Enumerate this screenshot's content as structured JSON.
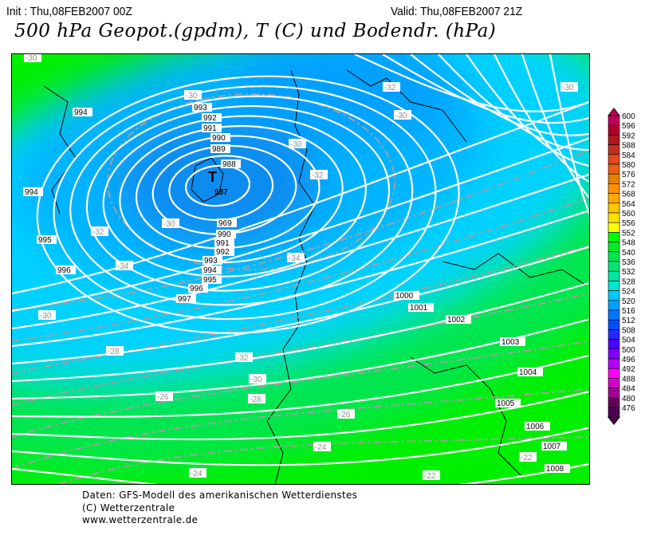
{
  "header": {
    "init": "Init : Thu,08FEB2007 00Z",
    "valid": "Valid: Thu,08FEB2007 21Z",
    "title": "500 hPa Geopot.(gpdm), T (C) und Bodendr. (hPa)"
  },
  "legend": {
    "values": [
      "600",
      "596",
      "592",
      "588",
      "584",
      "580",
      "576",
      "572",
      "568",
      "564",
      "560",
      "556",
      "552",
      "548",
      "540",
      "536",
      "532",
      "528",
      "524",
      "520",
      "516",
      "512",
      "508",
      "504",
      "500",
      "496",
      "492",
      "488",
      "484",
      "480",
      "476"
    ],
    "colors": [
      "#c0005a",
      "#b0002a",
      "#b01820",
      "#c03020",
      "#e04820",
      "#e86010",
      "#e88000",
      "#ff9000",
      "#ffaa00",
      "#ffc800",
      "#ffe000",
      "#ffff00",
      "#00ff00",
      "#00ee28",
      "#00e650",
      "#00e678",
      "#00e6a0",
      "#00e6d2",
      "#00c8ff",
      "#00a0ff",
      "#0078ff",
      "#0050ff",
      "#2828ff",
      "#5000ff",
      "#8000ff",
      "#b400ff",
      "#ff00ff",
      "#d200c8",
      "#a00096",
      "#64005a",
      "#500050"
    ]
  },
  "map": {
    "low_center_label": "T",
    "isobar_labels": [
      "994",
      "993",
      "992",
      "991",
      "990",
      "989",
      "988",
      "987",
      "994",
      "995",
      "996",
      "997",
      "969",
      "990",
      "991",
      "992",
      "993",
      "994",
      "995",
      "996",
      "1000",
      "1001",
      "1002",
      "1003",
      "1004",
      "1005",
      "1006",
      "1007",
      "1008"
    ],
    "temperature_labels": [
      "-30",
      "-30",
      "-32",
      "-30",
      "-30",
      "-30",
      "-32",
      "-30",
      "-32",
      "-34",
      "-34",
      "-30",
      "-28",
      "-32",
      "-30",
      "-26",
      "-28",
      "-26",
      "-24",
      "-24",
      "-22",
      "-22"
    ],
    "colors": {
      "isobar": "#ffffff",
      "isotherm": "#a0a0a0",
      "core": "#0a8cf0",
      "blue": "#00aaff",
      "cyan": "#00d2ff",
      "green": "#00e650",
      "bright_green": "#00f000"
    }
  },
  "footer": {
    "line1": "Daten: GFS-Modell des amerikanischen Wetterdienstes",
    "line2": "(C) Wetterzentrale",
    "line3": "www.wetterzentrale.de"
  }
}
